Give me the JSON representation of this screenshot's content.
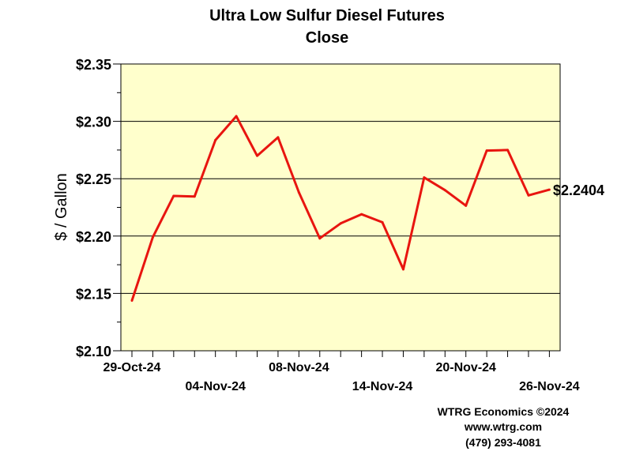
{
  "chart_data": {
    "type": "line",
    "title": "Ultra Low Sulfur Diesel Futures",
    "subtitle": "Close",
    "ylabel": "$ / Gallon",
    "xlabel": "",
    "ylim": [
      2.1,
      2.35
    ],
    "y_ticks": [
      "$2.10",
      "$2.15",
      "$2.20",
      "$2.25",
      "$2.30",
      "$2.35"
    ],
    "y_tick_values": [
      2.1,
      2.15,
      2.2,
      2.25,
      2.3,
      2.35
    ],
    "x": [
      "29-Oct-24",
      "30-Oct-24",
      "31-Oct-24",
      "01-Nov-24",
      "04-Nov-24",
      "05-Nov-24",
      "06-Nov-24",
      "07-Nov-24",
      "08-Nov-24",
      "11-Nov-24",
      "12-Nov-24",
      "13-Nov-24",
      "14-Nov-24",
      "15-Nov-24",
      "18-Nov-24",
      "19-Nov-24",
      "20-Nov-24",
      "21-Nov-24",
      "22-Nov-24",
      "25-Nov-24",
      "26-Nov-24"
    ],
    "x_tick_labels": [
      {
        "label": "29-Oct-24",
        "index": 0,
        "row": 1
      },
      {
        "label": "04-Nov-24",
        "index": 4,
        "row": 2
      },
      {
        "label": "08-Nov-24",
        "index": 8,
        "row": 1
      },
      {
        "label": "14-Nov-24",
        "index": 12,
        "row": 2
      },
      {
        "label": "20-Nov-24",
        "index": 16,
        "row": 1
      },
      {
        "label": "26-Nov-24",
        "index": 20,
        "row": 2
      }
    ],
    "series": [
      {
        "values": [
          2.1437,
          2.199,
          2.235,
          2.2345,
          2.2836,
          2.3045,
          2.27,
          2.286,
          2.238,
          2.198,
          2.211,
          2.219,
          2.212,
          2.171,
          2.251,
          2.24,
          2.2265,
          2.2745,
          2.275,
          2.2355,
          2.2404
        ],
        "color": "#e8150f"
      }
    ],
    "last_value_label": "$2.2404",
    "grid": true,
    "plot_background": "#ffffcc"
  },
  "credits": {
    "line1": "WTRG Economics ©2024",
    "line2": "www.wtrg.com",
    "line3": "(479) 293-4081"
  }
}
